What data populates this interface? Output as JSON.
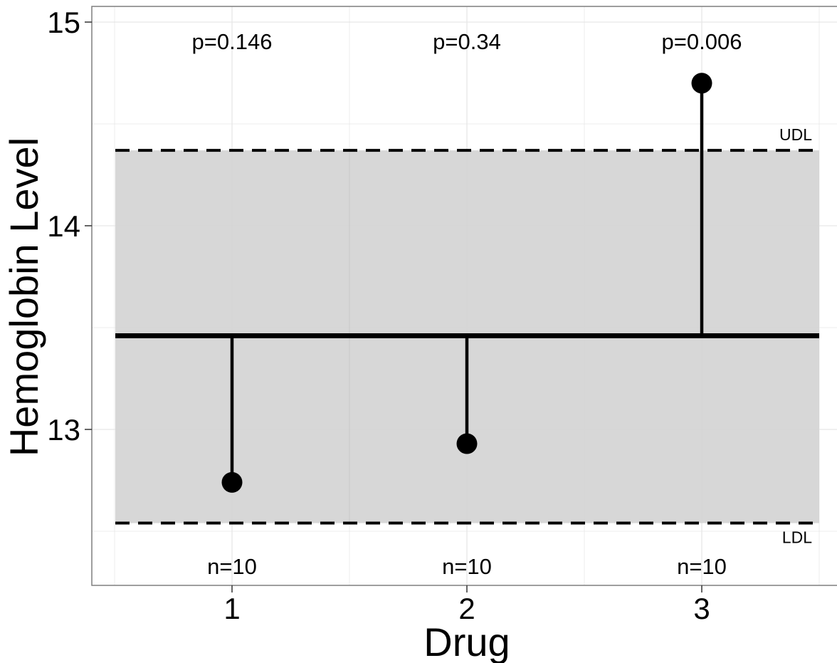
{
  "chart_data": {
    "type": "scatter",
    "xlabel": "Drug",
    "ylabel": "Hemoglobin Level",
    "categories": [
      "1",
      "2",
      "3"
    ],
    "values": [
      12.74,
      12.93,
      14.7
    ],
    "center_line": 13.46,
    "upper_limit": 14.37,
    "lower_limit": 12.54,
    "upper_limit_label": "UDL",
    "lower_limit_label": "LDL",
    "p_values": [
      "p=0.146",
      "p=0.34",
      "p=0.006"
    ],
    "n_labels": [
      "n=10",
      "n=10",
      "n=10"
    ],
    "y_ticks": [
      13,
      14,
      15
    ],
    "y_tick_labels": [
      "13",
      "14",
      "15"
    ],
    "ylim": [
      12.28,
      15.08
    ],
    "xlim": [
      0.4,
      3.6
    ],
    "grid": true,
    "colors": {
      "band": "#d3d3d3",
      "grid": "#e6e6e6",
      "marks": "#000000",
      "panel_border": "#7f7f7f"
    }
  }
}
